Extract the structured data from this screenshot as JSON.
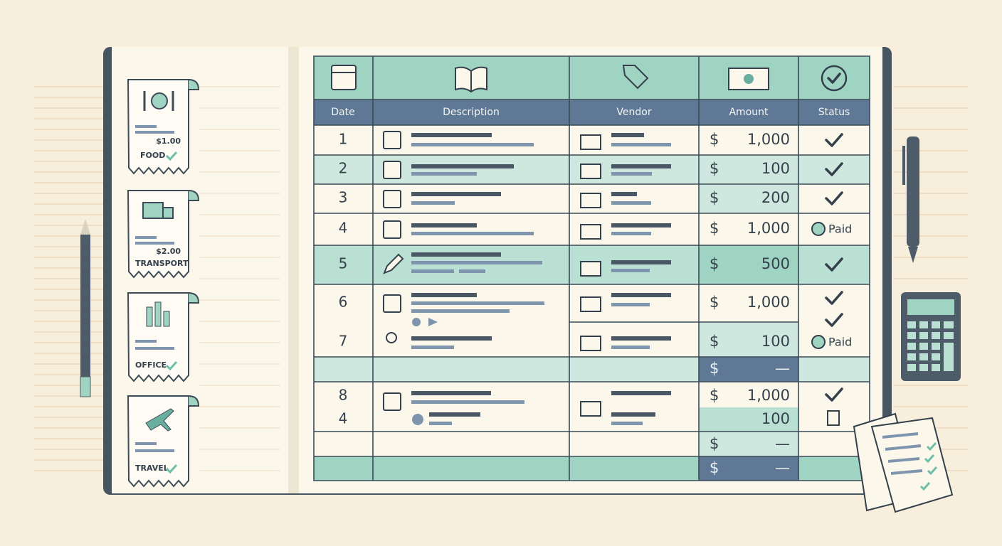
{
  "receipts": [
    {
      "amount": "$1.00",
      "label": "FOOD"
    },
    {
      "amount": "$2.00",
      "label": "TRANSPORT"
    },
    {
      "label": "OFFICE"
    },
    {
      "label": "TRAVEL"
    }
  ],
  "table": {
    "headers": [
      "Date",
      "Description",
      "Vendor",
      "Amount",
      "Status"
    ],
    "rows": [
      {
        "date": "1",
        "currency": "$",
        "amount": "1,000"
      },
      {
        "date": "2",
        "currency": "$",
        "amount": "100"
      },
      {
        "date": "3",
        "currency": "$",
        "amount": "200"
      },
      {
        "date": "4",
        "currency": "$",
        "amount": "1,000",
        "status": "Paid"
      },
      {
        "date": "5",
        "currency": "$",
        "amount": "500"
      },
      {
        "date": "6",
        "currency": "$",
        "amount": "1,000"
      },
      {
        "date": "7",
        "currency": "$",
        "amount": "100",
        "status": "Paid"
      },
      {
        "currency": "$",
        "amount": "—"
      },
      {
        "date": "8",
        "currency": "$",
        "amount": "1,000"
      },
      {
        "date": "4",
        "amount": "100"
      },
      {
        "currency": "$",
        "amount": "—"
      },
      {
        "currency": "$",
        "amount": "—"
      }
    ]
  }
}
